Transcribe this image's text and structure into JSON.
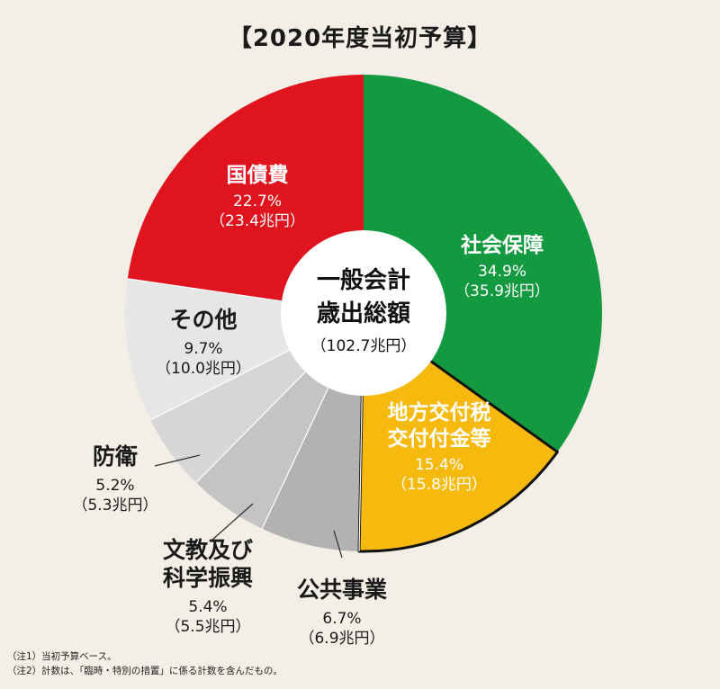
{
  "title": "【2020年度当初予算】",
  "center": {
    "line1": "一般会計",
    "line2": "歳出総額",
    "total": "（102.7兆円）"
  },
  "notes": [
    "（注1）当初予算ベース。",
    "（注2）計数は、「臨時・特別の措置」に係る計数を含んだもの。"
  ],
  "chart_data": {
    "type": "pie",
    "title": "【2020年度当初予算】",
    "total_label": "一般会計歳出総額（102.7兆円）",
    "unit": "兆円",
    "slices": [
      {
        "name": "社会保障",
        "name_lines": [
          "社会保障"
        ],
        "percent": 34.9,
        "pct_label": "34.9%",
        "value": 35.9,
        "amount_label": "（35.9兆円）",
        "color": "#13993f",
        "label_color": "#ffffff"
      },
      {
        "name": "地方交付税交付金等",
        "name_lines": [
          "地方交付税",
          "交付付金等"
        ],
        "percent": 15.4,
        "pct_label": "15.4%",
        "value": 15.8,
        "amount_label": "（15.8兆円）",
        "color": "#f6b90d",
        "label_color": "#ffffff"
      },
      {
        "name": "公共事業",
        "name_lines": [
          "公共事業"
        ],
        "percent": 6.7,
        "pct_label": "6.7%",
        "value": 6.9,
        "amount_label": "（6.9兆円）",
        "color": "#b2b2b2",
        "label_color": "#1a1a1a"
      },
      {
        "name": "文教及び科学振興",
        "name_lines": [
          "文教及び",
          "科学振興"
        ],
        "percent": 5.4,
        "pct_label": "5.4%",
        "value": 5.5,
        "amount_label": "（5.5兆円）",
        "color": "#c4c4c4",
        "label_color": "#1a1a1a"
      },
      {
        "name": "防衛",
        "name_lines": [
          "防衛"
        ],
        "percent": 5.2,
        "pct_label": "5.2%",
        "value": 5.3,
        "amount_label": "（5.3兆円）",
        "color": "#d6d6d6",
        "label_color": "#1a1a1a"
      },
      {
        "name": "その他",
        "name_lines": [
          "その他"
        ],
        "percent": 9.7,
        "pct_label": "9.7%",
        "value": 10.0,
        "amount_label": "（10.0兆円）",
        "color": "#e6e6e6",
        "label_color": "#1a1a1a"
      },
      {
        "name": "国債費",
        "name_lines": [
          "国債費"
        ],
        "percent": 22.7,
        "pct_label": "22.7%",
        "value": 23.4,
        "amount_label": "（23.4兆円）",
        "color": "#e0141e",
        "label_color": "#ffffff"
      }
    ]
  }
}
